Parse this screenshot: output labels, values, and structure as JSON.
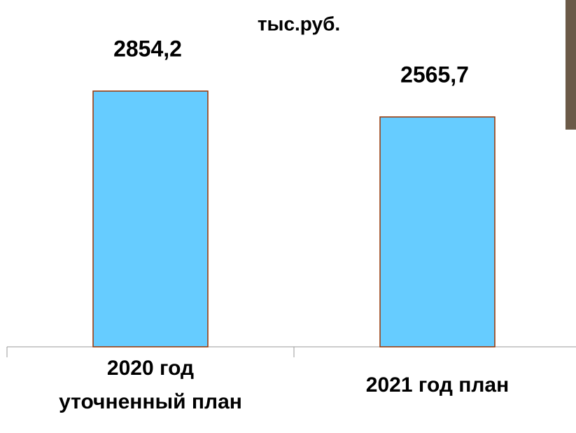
{
  "chart_data": {
    "type": "bar",
    "title": "тыс.руб.",
    "categories": [
      "2020 год\nуточненный план",
      "2021 год план"
    ],
    "values": [
      2854.2,
      2565.7
    ],
    "value_labels": [
      "2854,2",
      "2565,7"
    ],
    "color": "#66ccff"
  }
}
